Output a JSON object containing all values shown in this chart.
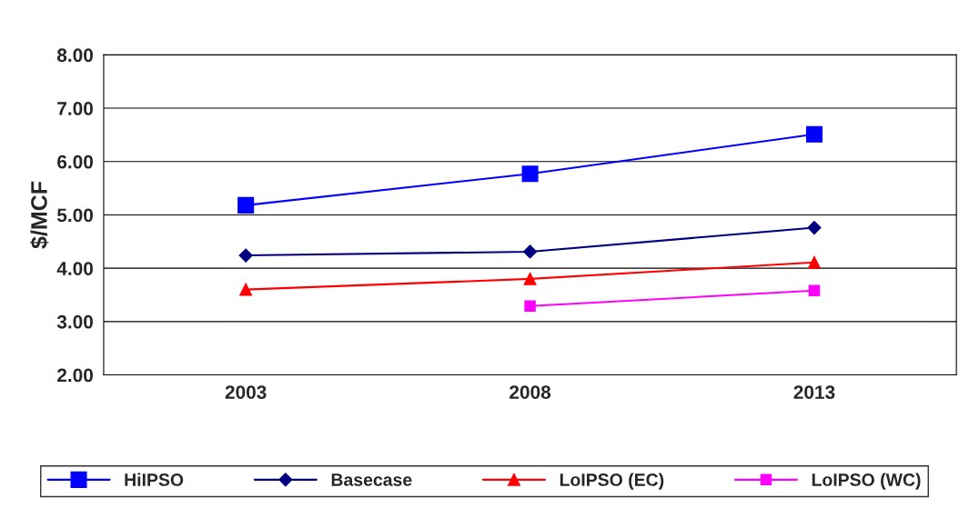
{
  "chart_data": {
    "type": "line",
    "ylabel": "$/MCF",
    "categories": [
      "2003",
      "2008",
      "2013"
    ],
    "ylim": [
      2,
      8
    ],
    "yticks": [
      {
        "value": 2,
        "label": "2.00"
      },
      {
        "value": 3,
        "label": "3.00"
      },
      {
        "value": 4,
        "label": "4.00"
      },
      {
        "value": 5,
        "label": "5.00"
      },
      {
        "value": 6,
        "label": "6.00"
      },
      {
        "value": 7,
        "label": "7.00"
      },
      {
        "value": 8,
        "label": "8.00"
      }
    ],
    "grid": "y",
    "legend": "bottom",
    "series": [
      {
        "name": "HiIPSO",
        "color": "#0000ff",
        "marker": "square",
        "values": [
          5.18,
          5.77,
          6.51
        ]
      },
      {
        "name": "Basecase",
        "color": "#000080",
        "marker": "diamond",
        "values": [
          4.24,
          4.31,
          4.76
        ]
      },
      {
        "name": "LoIPSO (EC)",
        "color": "#ff0000",
        "marker": "triangle",
        "values": [
          3.6,
          3.8,
          4.11
        ]
      },
      {
        "name": "LoIPSO (WC)",
        "color": "#ff00ff",
        "marker": "square",
        "values": [
          null,
          3.29,
          3.58
        ]
      }
    ]
  }
}
